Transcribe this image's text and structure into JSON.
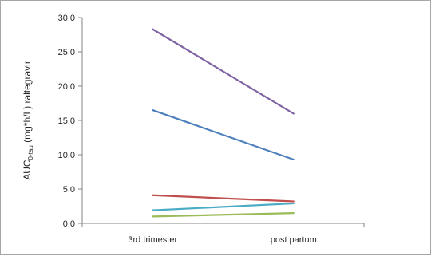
{
  "chart_data": {
    "type": "line",
    "title": "",
    "xlabel": "",
    "ylabel": {
      "prefix": "AUC",
      "subscript": "0-tau",
      "suffix": " (mg*h/L)  raltegravir"
    },
    "categories": [
      "3rd trimester",
      "post partum"
    ],
    "ylim": [
      0,
      30
    ],
    "yticks": [
      0,
      5,
      10,
      15,
      20,
      25,
      30
    ],
    "ytick_labels": [
      "0.0",
      "5.0",
      "10.0",
      "15.0",
      "20.0",
      "25.0",
      "30.0"
    ],
    "grid": false,
    "legend": "none",
    "series": [
      {
        "color": "#8064a2",
        "values": [
          28.3,
          16.0
        ]
      },
      {
        "color": "#4f81bd",
        "values": [
          16.5,
          9.3
        ]
      },
      {
        "color": "#c0504d",
        "values": [
          4.1,
          3.2
        ]
      },
      {
        "color": "#4bacc6",
        "values": [
          1.9,
          2.9
        ]
      },
      {
        "color": "#9bbb59",
        "values": [
          1.0,
          1.5
        ]
      }
    ]
  }
}
